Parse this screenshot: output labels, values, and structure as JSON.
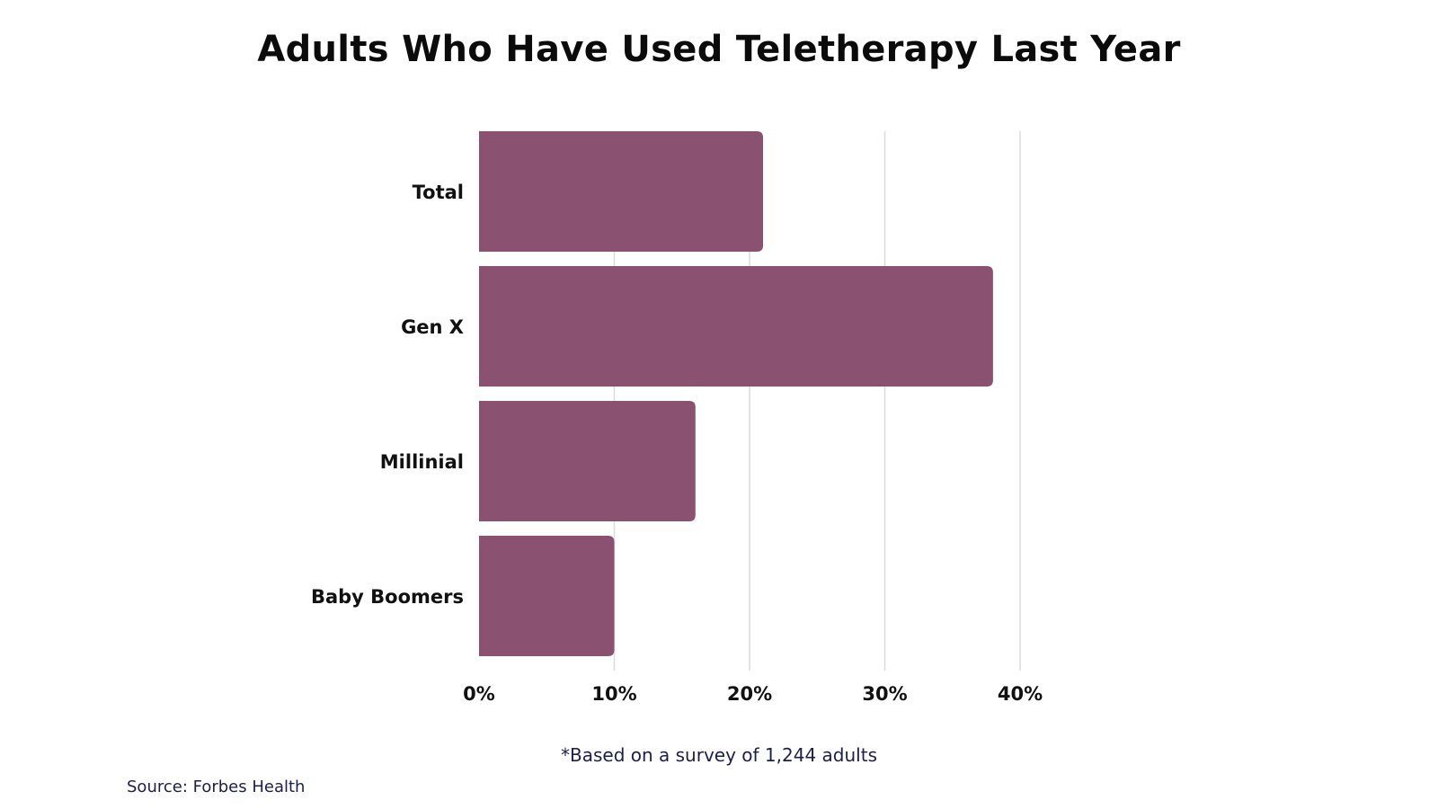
{
  "chart_data": {
    "type": "bar",
    "orientation": "horizontal",
    "title": "Adults Who Have Used Teletherapy Last Year",
    "categories": [
      "Total",
      "Gen X",
      "Millinial",
      "Baby Boomers"
    ],
    "values": [
      21,
      38,
      16,
      10
    ],
    "xlim": [
      0,
      40
    ],
    "xticks": [
      "0%",
      "10%",
      "20%",
      "30%",
      "40%"
    ],
    "grid": true,
    "legend": "none",
    "bar_color": "#8a5270",
    "footnote": "*Based on a survey of 1,244 adults",
    "source": "Source: Forbes Health"
  }
}
